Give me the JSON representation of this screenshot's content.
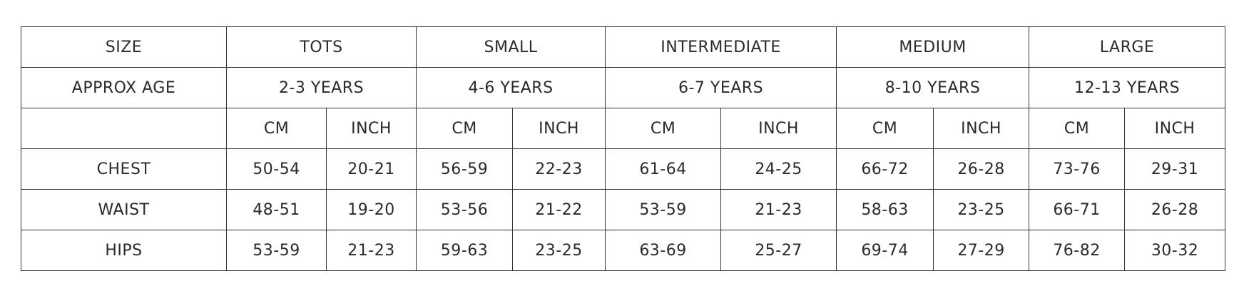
{
  "table": {
    "size_row": {
      "label": "SIZE",
      "sizes": [
        "TOTS",
        "SMALL",
        "INTERMEDIATE",
        "MEDIUM",
        "LARGE"
      ]
    },
    "age_row": {
      "label": "APPROX AGE",
      "ages": [
        "2-3 YEARS",
        "4-6 YEARS",
        "6-7 YEARS",
        "8-10 YEARS",
        "12-13 YEARS"
      ]
    },
    "units": [
      "CM",
      "INCH",
      "CM",
      "INCH",
      "CM",
      "INCH",
      "CM",
      "INCH",
      "CM",
      "INCH"
    ],
    "rows": [
      {
        "label": "CHEST",
        "values": [
          "50-54",
          "20-21",
          "56-59",
          "22-23",
          "61-64",
          "24-25",
          "66-72",
          "26-28",
          "73-76",
          "29-31"
        ]
      },
      {
        "label": "WAIST",
        "values": [
          "48-51",
          "19-20",
          "53-56",
          "21-22",
          "53-59",
          "21-23",
          "58-63",
          "23-25",
          "66-71",
          "26-28"
        ]
      },
      {
        "label": "HIPS",
        "values": [
          "53-59",
          "21-23",
          "59-63",
          "23-25",
          "63-69",
          "25-27",
          "69-74",
          "27-29",
          "76-82",
          "30-32"
        ]
      }
    ]
  }
}
